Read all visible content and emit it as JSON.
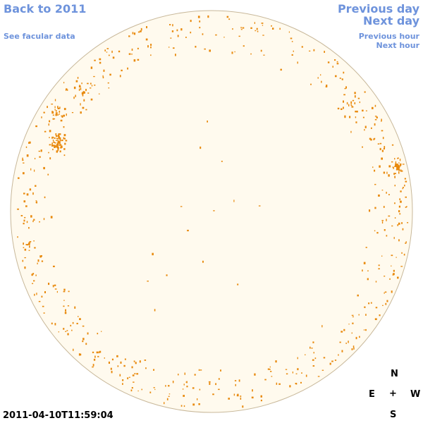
{
  "nav": {
    "back_label": "Back to 2011",
    "facular_label": "See facular data",
    "prev_day_label": "Previous day",
    "next_day_label": "Next day",
    "prev_hour_label": "Previous hour",
    "next_hour_label": "Next hour"
  },
  "compass": {
    "north": "N",
    "east": "E",
    "center": "+",
    "west": "W",
    "south": "S"
  },
  "timestamp": "2011-04-10T11:59:04",
  "colors": {
    "link": "#6e93dc",
    "disk_fill": "#fffaee",
    "disk_outline": "#c8b89a",
    "facula": "#e8890c"
  }
}
